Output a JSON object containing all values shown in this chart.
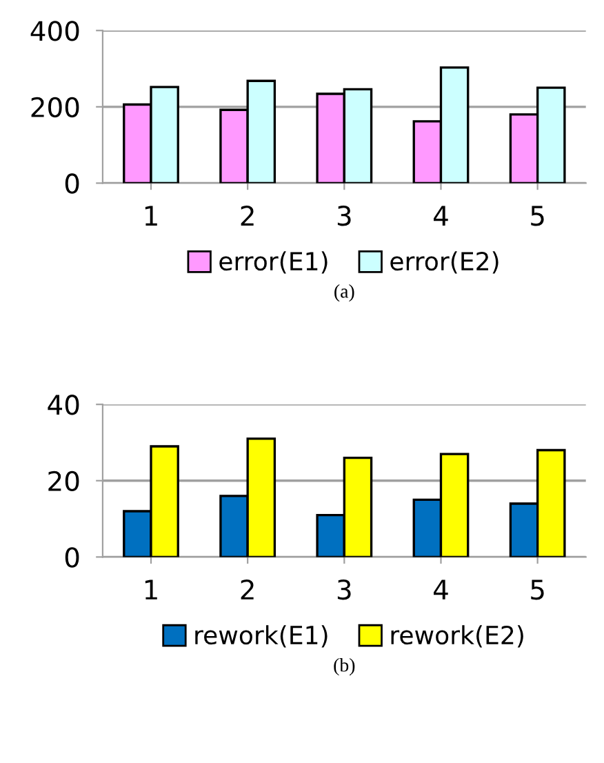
{
  "chart_data": [
    {
      "type": "bar",
      "categories": [
        "1",
        "2",
        "3",
        "4",
        "5"
      ],
      "series": [
        {
          "name": "error(E1)",
          "color": "#ff99ff",
          "values": [
            206,
            192,
            234,
            162,
            180
          ]
        },
        {
          "name": "error(E2)",
          "color": "#ccffff",
          "values": [
            252,
            268,
            246,
            303,
            250
          ]
        }
      ],
      "ylim": [
        0,
        400
      ],
      "yticks": [
        0,
        200,
        400
      ],
      "grid": "y",
      "legend": "bottom",
      "annotations": [
        "(a)"
      ]
    },
    {
      "type": "bar",
      "categories": [
        "1",
        "2",
        "3",
        "4",
        "5"
      ],
      "series": [
        {
          "name": "rework(E1)",
          "color": "#0070c0",
          "values": [
            12,
            16,
            11,
            15,
            14
          ]
        },
        {
          "name": "rework(E2)",
          "color": "#ffff00",
          "values": [
            29,
            31,
            26,
            27,
            28
          ]
        }
      ],
      "ylim": [
        0,
        40
      ],
      "yticks": [
        0,
        20,
        40
      ],
      "grid": "y",
      "legend": "bottom",
      "annotations": [
        "(b)"
      ]
    }
  ]
}
